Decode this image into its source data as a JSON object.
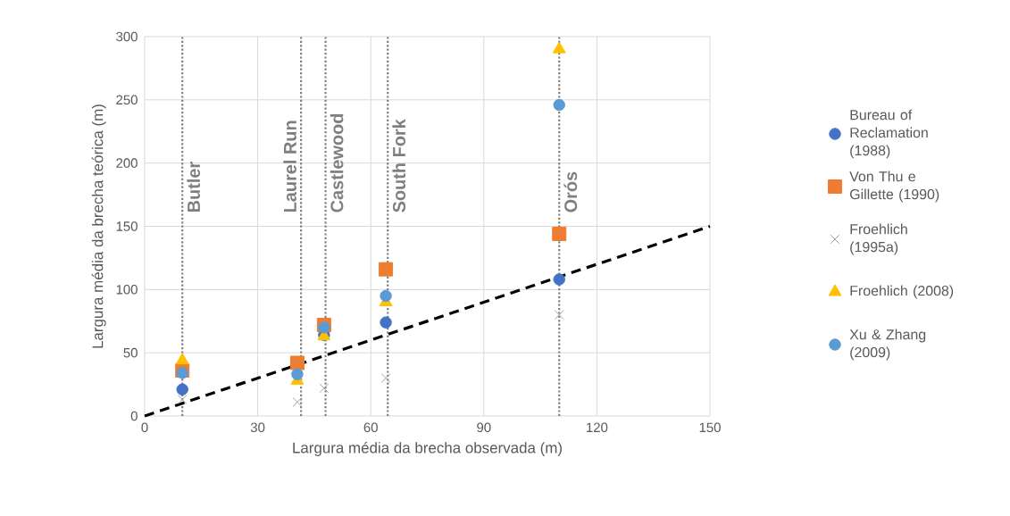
{
  "chart_data": {
    "type": "scatter",
    "xlabel": "Largura média da brecha observada (m)",
    "ylabel": "Largura média da brecha teórica (m)",
    "xlim": [
      0,
      150
    ],
    "ylim": [
      0,
      300
    ],
    "xticks": [
      0,
      30,
      60,
      90,
      120,
      150
    ],
    "yticks": [
      0,
      50,
      100,
      150,
      200,
      250,
      300
    ],
    "grid": true,
    "legend": "right",
    "x": [
      10,
      40.5,
      47.6,
      64,
      110
    ],
    "series": [
      {
        "name": "Bureau of Reclamation (1988)",
        "color": "#4472c4",
        "marker": "circle",
        "values": [
          21,
          null,
          64,
          74,
          108
        ]
      },
      {
        "name": "Von Thu e Gillette (1990)",
        "color": "#ed7d31",
        "marker": "square",
        "values": [
          36,
          42,
          72,
          116,
          144
        ]
      },
      {
        "name": "Froehlich (1995a)",
        "color": "#a5a5a5",
        "marker": "cross",
        "values": [
          13,
          11,
          22,
          30,
          80
        ]
      },
      {
        "name": "Froehlich (2008)",
        "color": "#ffc000",
        "marker": "triangle",
        "values": [
          44,
          28,
          63,
          90,
          290
        ]
      },
      {
        "name": "Xu & Zhang (2009)",
        "color": "#5b9bd5",
        "marker": "circle",
        "values": [
          34,
          33,
          70,
          95,
          246
        ]
      },
      {
        "type": "line",
        "x": [
          0,
          150
        ],
        "values": [
          0,
          150
        ],
        "color": "#000000",
        "marker": "none",
        "line_style": "dashed"
      }
    ],
    "ref_lines": [
      {
        "axis": "x",
        "value": 10,
        "label": "Butler",
        "color": "#7f7f7f",
        "line_style": "dotted"
      },
      {
        "axis": "x",
        "value": 41.5,
        "label": "Laurel Run",
        "color": "#7f7f7f",
        "line_style": "dotted"
      },
      {
        "axis": "x",
        "value": 48,
        "label": "Castlewood",
        "color": "#7f7f7f",
        "line_style": "dotted"
      },
      {
        "axis": "x",
        "value": 64.5,
        "label": "South Fork",
        "color": "#7f7f7f",
        "line_style": "dotted"
      },
      {
        "axis": "x",
        "value": 110,
        "label": "Orós",
        "color": "#7f7f7f",
        "line_style": "dotted"
      }
    ]
  }
}
